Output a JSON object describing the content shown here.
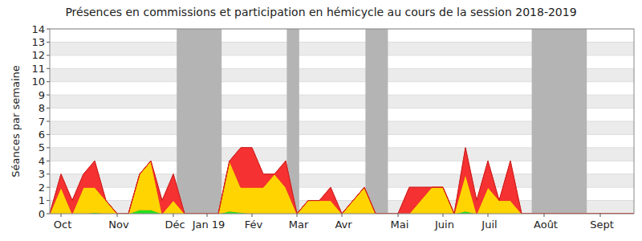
{
  "chart_data": {
    "type": "area",
    "title": "Présences en commissions et participation en hémicycle au cours de la session 2018-2019",
    "y_label": "Séances par semaine",
    "stacked": true,
    "grid": true,
    "categories": [
      null,
      "Oct",
      null,
      null,
      null,
      null,
      "Nov",
      null,
      null,
      null,
      null,
      "Déc",
      null,
      null,
      "Jan 19",
      null,
      null,
      null,
      "Fév",
      null,
      null,
      null,
      "Mar",
      null,
      null,
      null,
      "Avr",
      null,
      null,
      null,
      null,
      "Mai",
      null,
      null,
      null,
      "Juin",
      null,
      null,
      null,
      "Juil",
      null,
      null,
      null,
      null,
      "Août",
      null,
      null,
      null,
      null,
      "Sept",
      null,
      null,
      null
    ],
    "series": [
      {
        "color": "#22e022",
        "values": [
          0,
          0,
          0,
          0,
          0.1,
          0,
          0,
          0,
          0.3,
          0.3,
          0,
          0,
          0,
          0,
          0,
          0,
          0.2,
          0.1,
          0,
          0,
          0,
          0,
          0,
          0,
          0,
          0,
          0,
          0,
          0,
          0,
          0,
          0,
          0,
          0,
          0,
          0,
          0,
          0.2,
          0,
          0,
          0,
          0,
          0,
          0,
          0,
          0,
          0,
          0,
          0,
          0,
          0,
          0,
          0
        ]
      },
      {
        "color": "#ffd400",
        "values": [
          0,
          2,
          0,
          2,
          1.9,
          1,
          0,
          0,
          2.7,
          3.7,
          0,
          1,
          0,
          0,
          0,
          0,
          3.8,
          1.9,
          2,
          2,
          3,
          2,
          0,
          1,
          1,
          1,
          0,
          1,
          2,
          0,
          0,
          0,
          0,
          1,
          2,
          2,
          0,
          2.8,
          0,
          2,
          1,
          1,
          0,
          0,
          0,
          0,
          0,
          0,
          0,
          0,
          0,
          0,
          0
        ]
      },
      {
        "color": "#f63131",
        "values": [
          0,
          1,
          1,
          1,
          2,
          0,
          0,
          0,
          0,
          0,
          1,
          2,
          0,
          0,
          0,
          0,
          0,
          3,
          3,
          1,
          0,
          2,
          0,
          0,
          0,
          1,
          0,
          0,
          0,
          0,
          0,
          0,
          2,
          1,
          0,
          0,
          0,
          2,
          1,
          2,
          0,
          3,
          0,
          0,
          0,
          0,
          0,
          0,
          0,
          0,
          0,
          0,
          0
        ]
      }
    ],
    "shaded_ranges": [
      [
        11.3,
        15.3
      ],
      [
        21.1,
        22.2
      ],
      [
        28.1,
        30.1
      ],
      [
        42.9,
        47.8
      ]
    ],
    "ylim": [
      0,
      14
    ],
    "yticks": [
      0,
      1,
      2,
      3,
      4,
      5,
      6,
      7,
      8,
      9,
      10,
      11,
      12,
      13,
      14
    ]
  }
}
